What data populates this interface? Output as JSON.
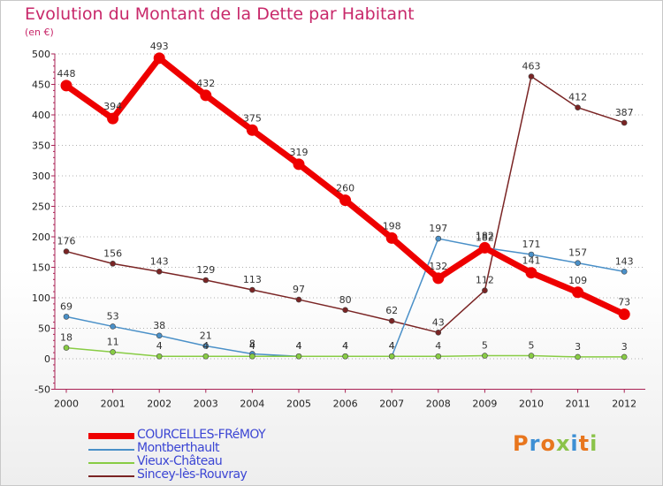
{
  "title": "Evolution du Montant de la Dette par Habitant",
  "unit": "(en €)",
  "logo": "Proxiti",
  "chart_data": {
    "type": "line",
    "title": "Evolution du Montant de la Dette par Habitant",
    "ylabel": "(en €)",
    "xlabel": "",
    "ylim": [
      -50,
      500
    ],
    "yticks": [
      "-50",
      "0",
      "50",
      "100",
      "150",
      "200",
      "250",
      "300",
      "350",
      "400",
      "450",
      "500"
    ],
    "categories": [
      "2000",
      "2001",
      "2002",
      "2003",
      "2004",
      "2005",
      "2006",
      "2007",
      "2008",
      "2009",
      "2010",
      "2011",
      "2012"
    ],
    "grid": "horizontal dotted",
    "legend": "bottom-left",
    "series": [
      {
        "name": "COURCELLES-FRéMOY",
        "color": "#ee0000",
        "emphasis": true,
        "values": [
          448,
          394,
          493,
          432,
          375,
          319,
          260,
          198,
          132,
          182,
          141,
          109,
          73
        ]
      },
      {
        "name": "Montberthault",
        "color": "#4a90c8",
        "emphasis": false,
        "values": [
          69,
          53,
          38,
          21,
          8,
          4,
          4,
          4,
          197,
          182,
          171,
          157,
          143
        ],
        "value_labels": [
          "69",
          "53",
          "38",
          "21",
          "8",
          "4",
          "4",
          "4",
          "197",
          "182",
          "171",
          "157",
          "143"
        ]
      },
      {
        "name": "Vieux-Château",
        "color": "#88cc44",
        "emphasis": false,
        "values": [
          18,
          11,
          4,
          4,
          4,
          4,
          4,
          4,
          4,
          5,
          5,
          3,
          3
        ]
      },
      {
        "name": "Sincey-lès-Rouvray",
        "color": "#7a2424",
        "emphasis": false,
        "values": [
          176,
          156,
          143,
          129,
          113,
          97,
          80,
          62,
          43,
          112,
          463,
          412,
          387
        ]
      }
    ],
    "point_labels": [
      {
        "series": 0,
        "i": 0,
        "text": "448"
      },
      {
        "series": 0,
        "i": 1,
        "text": "394"
      },
      {
        "series": 0,
        "i": 2,
        "text": "493"
      },
      {
        "series": 0,
        "i": 3,
        "text": "432"
      },
      {
        "series": 0,
        "i": 4,
        "text": "375"
      },
      {
        "series": 0,
        "i": 5,
        "text": "319"
      },
      {
        "series": 0,
        "i": 6,
        "text": "260"
      },
      {
        "series": 0,
        "i": 7,
        "text": "198"
      },
      {
        "series": 0,
        "i": 8,
        "text": "132"
      },
      {
        "series": 0,
        "i": 9,
        "text": "182"
      },
      {
        "series": 0,
        "i": 10,
        "text": "141"
      },
      {
        "series": 0,
        "i": 11,
        "text": "109"
      },
      {
        "series": 0,
        "i": 12,
        "text": "73"
      },
      {
        "series": 1,
        "i": 0,
        "text": "69"
      },
      {
        "series": 1,
        "i": 1,
        "text": "53"
      },
      {
        "series": 1,
        "i": 2,
        "text": "38"
      },
      {
        "series": 1,
        "i": 3,
        "text": "21"
      },
      {
        "series": 1,
        "i": 4,
        "text": "8"
      },
      {
        "series": 1,
        "i": 5,
        "text": "4"
      },
      {
        "series": 1,
        "i": 6,
        "text": "4"
      },
      {
        "series": 1,
        "i": 7,
        "text": "4"
      },
      {
        "series": 1,
        "i": 8,
        "text": "197"
      },
      {
        "series": 1,
        "i": 9,
        "text": "182"
      },
      {
        "series": 1,
        "i": 10,
        "text": "171"
      },
      {
        "series": 1,
        "i": 11,
        "text": "157"
      },
      {
        "series": 1,
        "i": 12,
        "text": "143"
      },
      {
        "series": 2,
        "i": 0,
        "text": "18"
      },
      {
        "series": 2,
        "i": 1,
        "text": "11"
      },
      {
        "series": 2,
        "i": 2,
        "text": "4"
      },
      {
        "series": 2,
        "i": 3,
        "text": "4"
      },
      {
        "series": 2,
        "i": 4,
        "text": "4"
      },
      {
        "series": 2,
        "i": 5,
        "text": "4"
      },
      {
        "series": 2,
        "i": 6,
        "text": "4"
      },
      {
        "series": 2,
        "i": 7,
        "text": "4"
      },
      {
        "series": 2,
        "i": 8,
        "text": "4"
      },
      {
        "series": 2,
        "i": 9,
        "text": "5"
      },
      {
        "series": 2,
        "i": 10,
        "text": "5"
      },
      {
        "series": 2,
        "i": 11,
        "text": "3"
      },
      {
        "series": 2,
        "i": 12,
        "text": "3"
      },
      {
        "series": 3,
        "i": 0,
        "text": "176"
      },
      {
        "series": 3,
        "i": 1,
        "text": "156"
      },
      {
        "series": 3,
        "i": 2,
        "text": "143"
      },
      {
        "series": 3,
        "i": 3,
        "text": "129"
      },
      {
        "series": 3,
        "i": 4,
        "text": "113"
      },
      {
        "series": 3,
        "i": 5,
        "text": "97"
      },
      {
        "series": 3,
        "i": 6,
        "text": "80"
      },
      {
        "series": 3,
        "i": 7,
        "text": "62"
      },
      {
        "series": 3,
        "i": 8,
        "text": "43"
      },
      {
        "series": 3,
        "i": 9,
        "text": "112"
      },
      {
        "series": 3,
        "i": 10,
        "text": "463"
      },
      {
        "series": 3,
        "i": 11,
        "text": "412"
      },
      {
        "series": 3,
        "i": 12,
        "text": "387"
      }
    ]
  }
}
